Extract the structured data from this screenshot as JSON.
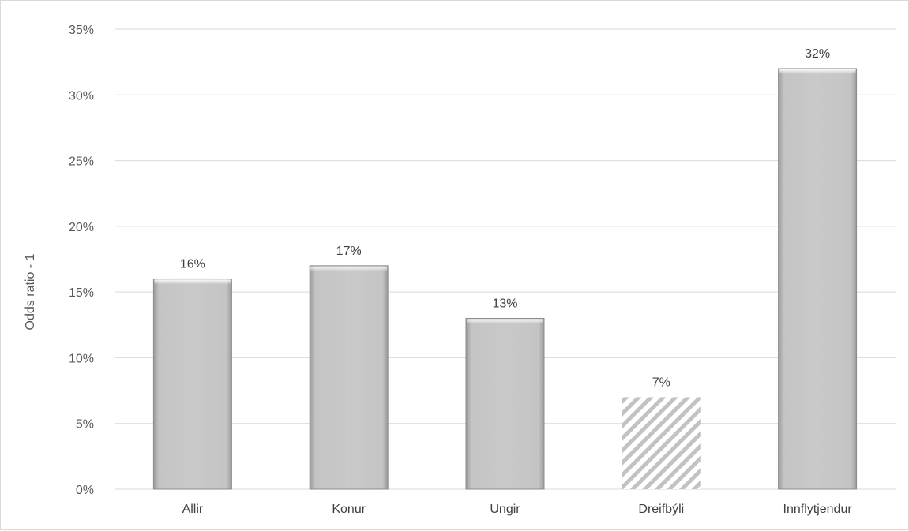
{
  "chart_data": {
    "type": "bar",
    "title": "",
    "xlabel": "",
    "ylabel": "Odds ratio - 1",
    "categories": [
      "Allir",
      "Konur",
      "Ungir",
      "Dreifbýli",
      "Innflytjendur"
    ],
    "values": [
      16,
      17,
      13,
      7,
      32
    ],
    "data_labels": [
      "16%",
      "17%",
      "13%",
      "7%",
      "32%"
    ],
    "patterns": [
      "solid",
      "solid",
      "solid",
      "hatched",
      "solid"
    ],
    "ylim": [
      0,
      35
    ],
    "yticks": [
      0,
      5,
      10,
      15,
      20,
      25,
      30,
      35
    ],
    "ytick_labels": [
      "0%",
      "5%",
      "10%",
      "15%",
      "20%",
      "25%",
      "30%",
      "35%"
    ],
    "grid": true,
    "legend": "none",
    "colors": {
      "bar_fill": "#bfbfbf",
      "bar_edge": "#8c8c8c",
      "hatch": "#bfbfbf",
      "grid": "#d9d9d9"
    }
  }
}
